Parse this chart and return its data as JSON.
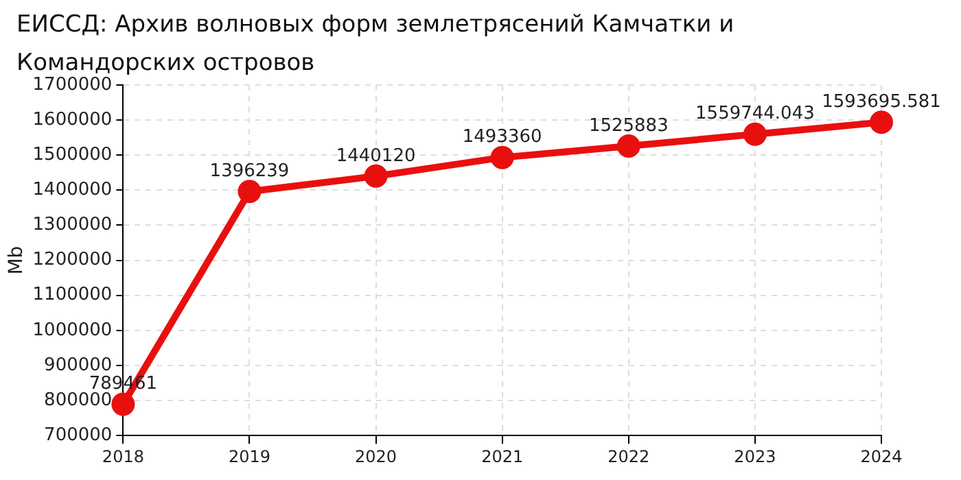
{
  "chart_data": {
    "type": "line",
    "title": "ЕИССД: Архив волновых форм землетрясений Камчатки и Командорских островов",
    "ylabel": "Mb",
    "categories": [
      "2018",
      "2019",
      "2020",
      "2021",
      "2022",
      "2023",
      "2024"
    ],
    "series": [
      {
        "color": "#e8100f",
        "values": [
          789461,
          1396239,
          1440120,
          1493360,
          1525883,
          1559744.043,
          1593695.581
        ]
      }
    ],
    "ylim": [
      700000,
      1700000
    ],
    "yticks": [
      700000,
      800000,
      900000,
      1000000,
      1100000,
      1200000,
      1300000,
      1400000,
      1500000,
      1600000,
      1700000
    ],
    "grid": true,
    "legend": false,
    "marker": "circle",
    "line_style": "solid",
    "data_labels": true
  }
}
